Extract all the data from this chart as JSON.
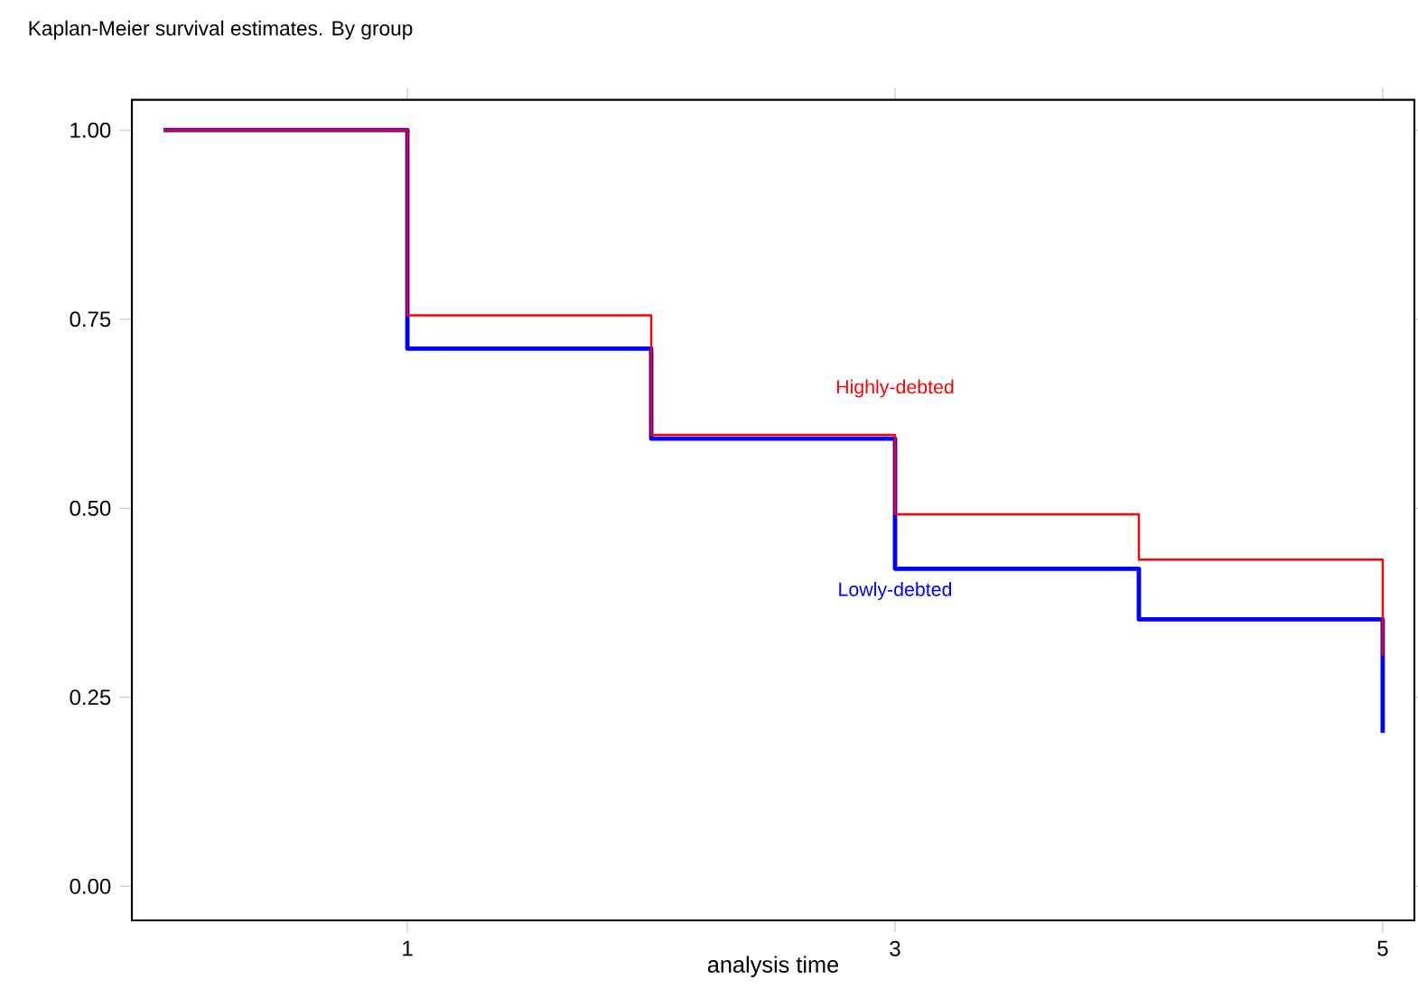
{
  "chart_data": {
    "type": "step",
    "title": "Kaplan-Meier survival estimates. By group",
    "xlabel": "analysis time",
    "x": [
      0,
      1,
      2,
      3,
      4,
      5
    ],
    "series": [
      {
        "name": "Lowly-debted",
        "color": "#0000ff",
        "values": [
          1.0,
          0.711,
          0.592,
          0.42,
          0.353,
          0.203
        ]
      },
      {
        "name": "Highly-debted",
        "color": "#ff0000",
        "values": [
          1.0,
          0.755,
          0.597,
          0.492,
          0.432,
          0.305
        ]
      }
    ],
    "xlim": [
      -0.13,
      5.13
    ],
    "xticks": [
      1,
      3,
      5
    ],
    "ylim": [
      -0.045,
      1.04
    ],
    "yticks": [
      {
        "value": 0,
        "label": "0.00"
      },
      {
        "value": 0.25,
        "label": "0.25"
      },
      {
        "value": 0.5,
        "label": "0.50"
      },
      {
        "value": 0.75,
        "label": "0.75"
      },
      {
        "value": 1,
        "label": "1.00"
      }
    ],
    "legend": false
  }
}
